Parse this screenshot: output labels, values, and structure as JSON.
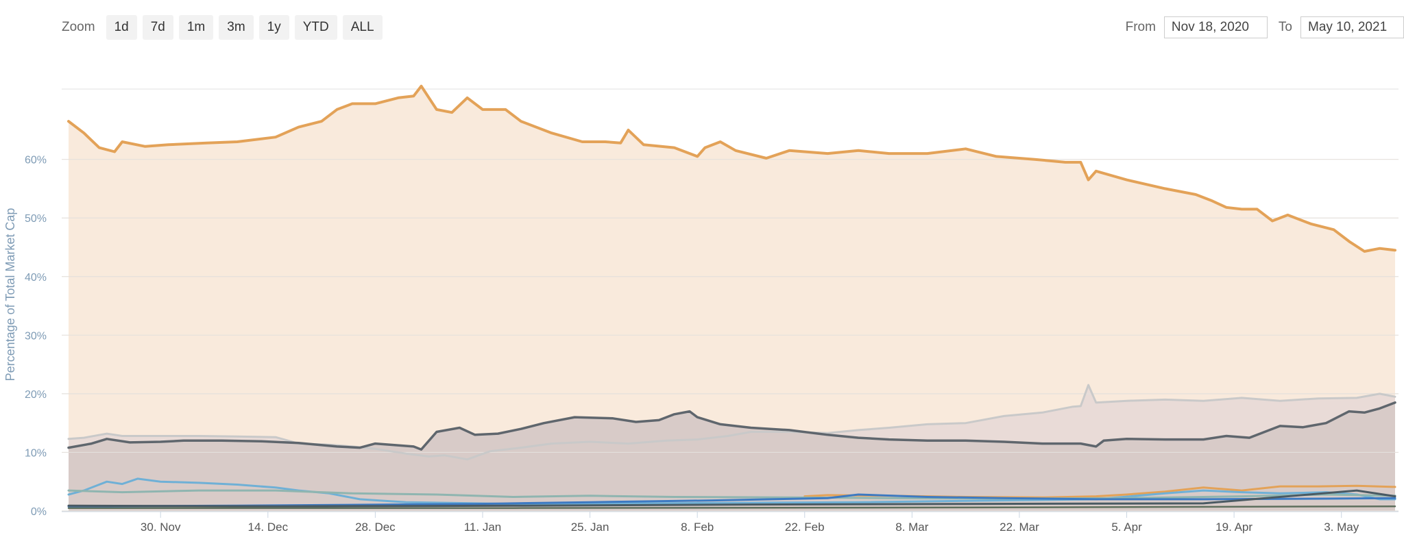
{
  "toolbar": {
    "zoom_label": "Zoom",
    "zoom_buttons": [
      "1d",
      "7d",
      "1m",
      "3m",
      "1y",
      "YTD",
      "ALL"
    ]
  },
  "range": {
    "from_label": "From",
    "from_value": "Nov 18, 2020",
    "to_label": "To",
    "to_value": "May 10, 2021"
  },
  "chart_data": {
    "type": "area",
    "ylabel": "Percentage of Total Market Cap",
    "ylim": [
      0,
      72
    ],
    "yticks": [
      "0%",
      "10%",
      "20%",
      "30%",
      "40%",
      "50%",
      "60%"
    ],
    "ytick_values": [
      0,
      10,
      20,
      30,
      40,
      50,
      60
    ],
    "xlim": [
      "2020-11-18",
      "2021-05-10"
    ],
    "xticks": [
      {
        "label": "30. Nov",
        "date": "2020-11-30"
      },
      {
        "label": "14. Dec",
        "date": "2020-12-14"
      },
      {
        "label": "28. Dec",
        "date": "2020-12-28"
      },
      {
        "label": "11. Jan",
        "date": "2021-01-11"
      },
      {
        "label": "25. Jan",
        "date": "2021-01-25"
      },
      {
        "label": "8. Feb",
        "date": "2021-02-08"
      },
      {
        "label": "22. Feb",
        "date": "2021-02-22"
      },
      {
        "label": "8. Mar",
        "date": "2021-03-08"
      },
      {
        "label": "22. Mar",
        "date": "2021-03-22"
      },
      {
        "label": "5. Apr",
        "date": "2021-04-05"
      },
      {
        "label": "19. Apr",
        "date": "2021-04-19"
      },
      {
        "label": "3. May",
        "date": "2021-05-03"
      }
    ],
    "grid": true,
    "series": [
      {
        "color": "#e3a258",
        "fill": "#f9eadc",
        "width": 4,
        "points": [
          [
            "2020-11-18",
            66.5
          ],
          [
            "2020-11-20",
            64.5
          ],
          [
            "2020-11-22",
            62
          ],
          [
            "2020-11-24",
            61.3
          ],
          [
            "2020-11-25",
            63
          ],
          [
            "2020-11-28",
            62.2
          ],
          [
            "2020-12-01",
            62.5
          ],
          [
            "2020-12-06",
            62.8
          ],
          [
            "2020-12-10",
            63
          ],
          [
            "2020-12-15",
            63.8
          ],
          [
            "2020-12-18",
            65.5
          ],
          [
            "2020-12-21",
            66.5
          ],
          [
            "2020-12-23",
            68.5
          ],
          [
            "2020-12-25",
            69.5
          ],
          [
            "2020-12-28",
            69.5
          ],
          [
            "2020-12-31",
            70.5
          ],
          [
            "2021-01-02",
            70.8
          ],
          [
            "2021-01-03",
            72.5
          ],
          [
            "2021-01-05",
            68.5
          ],
          [
            "2021-01-07",
            68
          ],
          [
            "2021-01-09",
            70.5
          ],
          [
            "2021-01-11",
            68.5
          ],
          [
            "2021-01-14",
            68.5
          ],
          [
            "2021-01-16",
            66.5
          ],
          [
            "2021-01-20",
            64.5
          ],
          [
            "2021-01-24",
            63
          ],
          [
            "2021-01-27",
            63
          ],
          [
            "2021-01-29",
            62.8
          ],
          [
            "2021-01-30",
            65
          ],
          [
            "2021-02-01",
            62.5
          ],
          [
            "2021-02-05",
            62
          ],
          [
            "2021-02-08",
            60.5
          ],
          [
            "2021-02-09",
            62
          ],
          [
            "2021-02-11",
            63
          ],
          [
            "2021-02-13",
            61.5
          ],
          [
            "2021-02-17",
            60.2
          ],
          [
            "2021-02-20",
            61.5
          ],
          [
            "2021-02-25",
            61
          ],
          [
            "2021-03-01",
            61.5
          ],
          [
            "2021-03-05",
            61
          ],
          [
            "2021-03-10",
            61
          ],
          [
            "2021-03-15",
            61.8
          ],
          [
            "2021-03-19",
            60.5
          ],
          [
            "2021-03-24",
            60
          ],
          [
            "2021-03-28",
            59.5
          ],
          [
            "2021-03-30",
            59.5
          ],
          [
            "2021-03-31",
            56.5
          ],
          [
            "2021-04-01",
            58
          ],
          [
            "2021-04-05",
            56.5
          ],
          [
            "2021-04-10",
            55
          ],
          [
            "2021-04-14",
            54
          ],
          [
            "2021-04-16",
            53
          ],
          [
            "2021-04-18",
            51.8
          ],
          [
            "2021-04-20",
            51.5
          ],
          [
            "2021-04-22",
            51.5
          ],
          [
            "2021-04-24",
            49.5
          ],
          [
            "2021-04-26",
            50.5
          ],
          [
            "2021-04-29",
            49
          ],
          [
            "2021-05-02",
            48
          ],
          [
            "2021-05-04",
            46
          ],
          [
            "2021-05-06",
            44.3
          ],
          [
            "2021-05-08",
            44.8
          ],
          [
            "2021-05-10",
            44.5
          ]
        ]
      },
      {
        "color": "#c9c9c9",
        "fill": "#e9dbd7",
        "width": 3,
        "points": [
          [
            "2020-11-18",
            12.3
          ],
          [
            "2020-11-20",
            12.5
          ],
          [
            "2020-11-23",
            13.2
          ],
          [
            "2020-11-25",
            12.8
          ],
          [
            "2020-11-30",
            12.8
          ],
          [
            "2020-12-05",
            12.8
          ],
          [
            "2020-12-10",
            12.7
          ],
          [
            "2020-12-15",
            12.6
          ],
          [
            "2020-12-18",
            11.5
          ],
          [
            "2020-12-22",
            11.3
          ],
          [
            "2020-12-25",
            11
          ],
          [
            "2020-12-28",
            10.6
          ],
          [
            "2021-01-01",
            9.8
          ],
          [
            "2021-01-04",
            9.3
          ],
          [
            "2021-01-06",
            9.5
          ],
          [
            "2021-01-09",
            8.8
          ],
          [
            "2021-01-12",
            10.2
          ],
          [
            "2021-01-16",
            10.8
          ],
          [
            "2021-01-20",
            11.5
          ],
          [
            "2021-01-25",
            11.8
          ],
          [
            "2021-01-30",
            11.5
          ],
          [
            "2021-02-04",
            12
          ],
          [
            "2021-02-08",
            12.2
          ],
          [
            "2021-02-12",
            12.8
          ],
          [
            "2021-02-15",
            13.5
          ],
          [
            "2021-02-20",
            13.5
          ],
          [
            "2021-02-25",
            13.3
          ],
          [
            "2021-03-01",
            13.8
          ],
          [
            "2021-03-05",
            14.2
          ],
          [
            "2021-03-10",
            14.8
          ],
          [
            "2021-03-15",
            15
          ],
          [
            "2021-03-20",
            16.2
          ],
          [
            "2021-03-25",
            16.8
          ],
          [
            "2021-03-29",
            17.8
          ],
          [
            "2021-03-30",
            17.9
          ],
          [
            "2021-03-31",
            21.5
          ],
          [
            "2021-04-01",
            18.5
          ],
          [
            "2021-04-05",
            18.8
          ],
          [
            "2021-04-10",
            19
          ],
          [
            "2021-04-15",
            18.8
          ],
          [
            "2021-04-20",
            19.3
          ],
          [
            "2021-04-25",
            18.8
          ],
          [
            "2021-04-30",
            19.2
          ],
          [
            "2021-05-05",
            19.3
          ],
          [
            "2021-05-08",
            20
          ],
          [
            "2021-05-10",
            19.5
          ]
        ]
      },
      {
        "color": "#5f666d",
        "fill": "#d8cbc8",
        "width": 3.5,
        "points": [
          [
            "2020-11-18",
            10.8
          ],
          [
            "2020-11-21",
            11.5
          ],
          [
            "2020-11-23",
            12.3
          ],
          [
            "2020-11-26",
            11.7
          ],
          [
            "2020-11-30",
            11.8
          ],
          [
            "2020-12-03",
            12
          ],
          [
            "2020-12-08",
            12
          ],
          [
            "2020-12-13",
            11.9
          ],
          [
            "2020-12-18",
            11.6
          ],
          [
            "2020-12-23",
            11
          ],
          [
            "2020-12-26",
            10.8
          ],
          [
            "2020-12-28",
            11.5
          ],
          [
            "2021-01-02",
            11
          ],
          [
            "2021-01-03",
            10.5
          ],
          [
            "2021-01-05",
            13.5
          ],
          [
            "2021-01-08",
            14.2
          ],
          [
            "2021-01-10",
            13
          ],
          [
            "2021-01-13",
            13.2
          ],
          [
            "2021-01-16",
            14
          ],
          [
            "2021-01-19",
            15
          ],
          [
            "2021-01-23",
            16
          ],
          [
            "2021-01-28",
            15.8
          ],
          [
            "2021-01-31",
            15.2
          ],
          [
            "2021-02-03",
            15.5
          ],
          [
            "2021-02-05",
            16.5
          ],
          [
            "2021-02-07",
            17
          ],
          [
            "2021-02-08",
            16
          ],
          [
            "2021-02-11",
            14.8
          ],
          [
            "2021-02-15",
            14.2
          ],
          [
            "2021-02-20",
            13.8
          ],
          [
            "2021-02-25",
            13
          ],
          [
            "2021-03-01",
            12.5
          ],
          [
            "2021-03-05",
            12.2
          ],
          [
            "2021-03-10",
            12
          ],
          [
            "2021-03-15",
            12
          ],
          [
            "2021-03-20",
            11.8
          ],
          [
            "2021-03-25",
            11.5
          ],
          [
            "2021-03-30",
            11.5
          ],
          [
            "2021-04-01",
            11
          ],
          [
            "2021-04-02",
            12
          ],
          [
            "2021-04-05",
            12.3
          ],
          [
            "2021-04-10",
            12.2
          ],
          [
            "2021-04-15",
            12.2
          ],
          [
            "2021-04-18",
            12.8
          ],
          [
            "2021-04-21",
            12.5
          ],
          [
            "2021-04-25",
            14.5
          ],
          [
            "2021-04-28",
            14.3
          ],
          [
            "2021-05-01",
            15
          ],
          [
            "2021-05-04",
            17
          ],
          [
            "2021-05-06",
            16.8
          ],
          [
            "2021-05-08",
            17.5
          ],
          [
            "2021-05-10",
            18.5
          ]
        ]
      },
      {
        "color": "#e3a258",
        "fill": "none",
        "width": 3,
        "points": [
          [
            "2021-02-22",
            2.5
          ],
          [
            "2021-02-25",
            2.7
          ],
          [
            "2021-03-05",
            2.6
          ],
          [
            "2021-03-15",
            2.4
          ],
          [
            "2021-03-25",
            2.3
          ],
          [
            "2021-04-01",
            2.5
          ],
          [
            "2021-04-05",
            2.8
          ],
          [
            "2021-04-10",
            3.3
          ],
          [
            "2021-04-15",
            4
          ],
          [
            "2021-04-20",
            3.5
          ],
          [
            "2021-04-25",
            4.2
          ],
          [
            "2021-04-30",
            4.2
          ],
          [
            "2021-05-05",
            4.3
          ],
          [
            "2021-05-10",
            4.1
          ]
        ]
      },
      {
        "color": "#6fb0d6",
        "fill": "none",
        "width": 3,
        "points": [
          [
            "2020-11-18",
            2.8
          ],
          [
            "2020-11-20",
            3.5
          ],
          [
            "2020-11-23",
            5
          ],
          [
            "2020-11-25",
            4.6
          ],
          [
            "2020-11-27",
            5.5
          ],
          [
            "2020-11-30",
            5
          ],
          [
            "2020-12-05",
            4.8
          ],
          [
            "2020-12-10",
            4.5
          ],
          [
            "2020-12-15",
            4
          ],
          [
            "2020-12-18",
            3.5
          ],
          [
            "2020-12-22",
            3
          ],
          [
            "2020-12-26",
            2
          ],
          [
            "2021-01-01",
            1.5
          ],
          [
            "2021-01-15",
            1.2
          ],
          [
            "2021-02-01",
            1.3
          ],
          [
            "2021-03-01",
            1.5
          ],
          [
            "2021-04-01",
            2
          ],
          [
            "2021-04-10",
            3
          ],
          [
            "2021-04-15",
            3.5
          ],
          [
            "2021-04-20",
            3.2
          ],
          [
            "2021-04-25",
            3
          ],
          [
            "2021-05-01",
            3.2
          ],
          [
            "2021-05-05",
            2.8
          ],
          [
            "2021-05-08",
            2
          ],
          [
            "2021-05-10",
            2
          ]
        ]
      },
      {
        "color": "#8fb5b0",
        "fill": "none",
        "width": 3,
        "points": [
          [
            "2020-11-18",
            3.5
          ],
          [
            "2020-11-25",
            3.2
          ],
          [
            "2020-12-05",
            3.5
          ],
          [
            "2020-12-15",
            3.5
          ],
          [
            "2020-12-25",
            3
          ],
          [
            "2021-01-05",
            2.8
          ],
          [
            "2021-01-15",
            2.4
          ],
          [
            "2021-01-25",
            2.6
          ],
          [
            "2021-02-05",
            2.4
          ],
          [
            "2021-02-20",
            2.3
          ],
          [
            "2021-03-05",
            2.2
          ],
          [
            "2021-03-20",
            2.1
          ],
          [
            "2021-04-05",
            2.2
          ],
          [
            "2021-04-20",
            2.5
          ],
          [
            "2021-05-01",
            2.8
          ],
          [
            "2021-05-10",
            2.6
          ]
        ]
      },
      {
        "color": "#3d7ac2",
        "fill": "none",
        "width": 3,
        "points": [
          [
            "2020-11-18",
            0.8
          ],
          [
            "2020-12-10",
            0.9
          ],
          [
            "2021-01-10",
            1.2
          ],
          [
            "2021-01-25",
            1.5
          ],
          [
            "2021-02-10",
            1.8
          ],
          [
            "2021-02-25",
            2.2
          ],
          [
            "2021-03-01",
            2.8
          ],
          [
            "2021-03-10",
            2.4
          ],
          [
            "2021-03-20",
            2.2
          ],
          [
            "2021-04-01",
            2
          ],
          [
            "2021-04-15",
            2
          ],
          [
            "2021-05-01",
            2.1
          ],
          [
            "2021-05-10",
            2.2
          ]
        ]
      },
      {
        "color": "#4a5a63",
        "fill": "none",
        "width": 3,
        "points": [
          [
            "2020-11-18",
            0.9
          ],
          [
            "2020-12-15",
            0.8
          ],
          [
            "2021-01-15",
            0.9
          ],
          [
            "2021-02-15",
            1.1
          ],
          [
            "2021-03-15",
            1.2
          ],
          [
            "2021-04-15",
            1.3
          ],
          [
            "2021-05-05",
            3.5
          ],
          [
            "2021-05-10",
            2.5
          ]
        ]
      },
      {
        "color": "#5e6f5d",
        "fill": "none",
        "width": 2.5,
        "points": [
          [
            "2020-11-18",
            0.5
          ],
          [
            "2021-01-15",
            0.5
          ],
          [
            "2021-03-15",
            0.6
          ],
          [
            "2021-05-10",
            0.8
          ]
        ]
      }
    ]
  }
}
